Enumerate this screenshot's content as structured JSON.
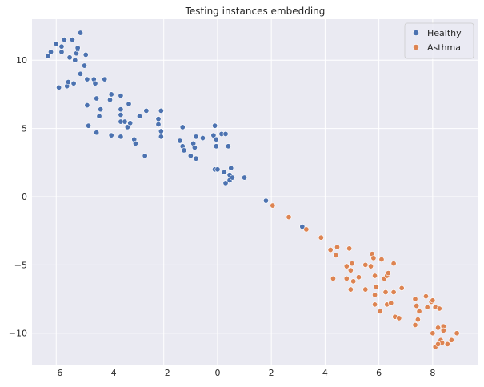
{
  "chart_data": {
    "type": "scatter",
    "title": "Testing instances embedding",
    "xlabel": "",
    "ylabel": "",
    "xlim": [
      -6.9,
      9.7
    ],
    "ylim": [
      -12.3,
      13.0
    ],
    "xticks": [
      -6,
      -4,
      -2,
      0,
      2,
      4,
      6,
      8
    ],
    "yticks": [
      -10,
      -5,
      0,
      5,
      10
    ],
    "xtick_labels": [
      "−6",
      "−4",
      "−2",
      "0",
      "2",
      "4",
      "6",
      "8"
    ],
    "ytick_labels": [
      "−10",
      "−5",
      "0",
      "5",
      "10"
    ],
    "grid": true,
    "background": "#eaeaf2",
    "legend_position": "top-right",
    "series": [
      {
        "name": "Healthy",
        "color": "#4c72b0",
        "points": [
          [
            -6.3,
            10.3
          ],
          [
            -6.2,
            10.6
          ],
          [
            -6.0,
            11.2
          ],
          [
            -5.8,
            10.6
          ],
          [
            -5.8,
            11.0
          ],
          [
            -5.7,
            11.5
          ],
          [
            -5.5,
            10.2
          ],
          [
            -5.4,
            11.5
          ],
          [
            -5.3,
            10.0
          ],
          [
            -5.25,
            10.5
          ],
          [
            -5.2,
            10.8
          ],
          [
            -5.2,
            10.9
          ],
          [
            -5.1,
            12.0
          ],
          [
            -5.1,
            9.0
          ],
          [
            -4.9,
            10.4
          ],
          [
            -4.95,
            9.6
          ],
          [
            -4.85,
            8.6
          ],
          [
            -5.9,
            8.0
          ],
          [
            -5.6,
            8.1
          ],
          [
            -5.55,
            8.4
          ],
          [
            -5.35,
            8.3
          ],
          [
            -4.6,
            8.6
          ],
          [
            -4.55,
            8.3
          ],
          [
            -4.2,
            8.6
          ],
          [
            -4.5,
            7.2
          ],
          [
            -3.95,
            7.5
          ],
          [
            -4.0,
            7.1
          ],
          [
            -3.6,
            7.4
          ],
          [
            -4.35,
            6.4
          ],
          [
            -4.4,
            5.9
          ],
          [
            -4.85,
            6.7
          ],
          [
            -4.8,
            5.2
          ],
          [
            -4.5,
            4.7
          ],
          [
            -3.95,
            4.5
          ],
          [
            -3.6,
            4.4
          ],
          [
            -3.6,
            6.4
          ],
          [
            -3.6,
            6.0
          ],
          [
            -3.6,
            5.5
          ],
          [
            -3.45,
            5.5
          ],
          [
            -3.35,
            5.1
          ],
          [
            -3.3,
            6.8
          ],
          [
            -3.25,
            5.4
          ],
          [
            -3.1,
            4.2
          ],
          [
            -3.05,
            3.9
          ],
          [
            -2.9,
            5.9
          ],
          [
            -2.65,
            6.3
          ],
          [
            -2.7,
            3.0
          ],
          [
            -2.2,
            5.7
          ],
          [
            -2.2,
            5.3
          ],
          [
            -2.1,
            6.3
          ],
          [
            -2.1,
            4.8
          ],
          [
            -2.1,
            4.4
          ],
          [
            -1.4,
            4.1
          ],
          [
            -1.3,
            5.1
          ],
          [
            -1.3,
            3.7
          ],
          [
            -1.25,
            3.4
          ],
          [
            -1.0,
            3.0
          ],
          [
            -0.9,
            3.9
          ],
          [
            -0.85,
            3.6
          ],
          [
            -0.8,
            4.4
          ],
          [
            -0.8,
            2.8
          ],
          [
            -0.55,
            4.3
          ],
          [
            -0.15,
            4.5
          ],
          [
            -0.1,
            5.2
          ],
          [
            -0.05,
            4.2
          ],
          [
            -0.05,
            3.7
          ],
          [
            -0.1,
            2.0
          ],
          [
            0.0,
            2.0
          ],
          [
            0.15,
            4.6
          ],
          [
            0.3,
            4.6
          ],
          [
            0.25,
            1.8
          ],
          [
            0.3,
            1.0
          ],
          [
            0.4,
            3.7
          ],
          [
            0.45,
            1.6
          ],
          [
            0.45,
            1.2
          ],
          [
            0.5,
            2.1
          ],
          [
            0.55,
            1.4
          ],
          [
            1.0,
            1.4
          ],
          [
            1.8,
            -0.3
          ],
          [
            3.15,
            -2.2
          ]
        ]
      },
      {
        "name": "Asthma",
        "color": "#dd8452",
        "points": [
          [
            2.05,
            -0.65
          ],
          [
            2.65,
            -1.5
          ],
          [
            3.3,
            -2.4
          ],
          [
            3.85,
            -3.0
          ],
          [
            4.2,
            -3.9
          ],
          [
            4.45,
            -3.7
          ],
          [
            4.9,
            -3.8
          ],
          [
            4.4,
            -4.3
          ],
          [
            4.3,
            -6.0
          ],
          [
            4.8,
            -5.1
          ],
          [
            4.95,
            -5.4
          ],
          [
            5.0,
            -4.9
          ],
          [
            4.8,
            -6.0
          ],
          [
            4.95,
            -6.8
          ],
          [
            5.05,
            -6.2
          ],
          [
            5.25,
            -5.9
          ],
          [
            5.5,
            -5.0
          ],
          [
            5.5,
            -6.8
          ],
          [
            5.75,
            -4.2
          ],
          [
            5.8,
            -4.5
          ],
          [
            5.7,
            -5.1
          ],
          [
            5.85,
            -5.8
          ],
          [
            5.9,
            -6.6
          ],
          [
            5.85,
            -7.2
          ],
          [
            5.85,
            -7.9
          ],
          [
            6.05,
            -8.4
          ],
          [
            6.1,
            -4.6
          ],
          [
            6.2,
            -6.0
          ],
          [
            6.3,
            -5.8
          ],
          [
            6.35,
            -5.6
          ],
          [
            6.25,
            -7.0
          ],
          [
            6.3,
            -7.9
          ],
          [
            6.55,
            -4.9
          ],
          [
            6.55,
            -7.0
          ],
          [
            6.45,
            -7.8
          ],
          [
            6.6,
            -8.8
          ],
          [
            6.85,
            -6.7
          ],
          [
            6.75,
            -8.9
          ],
          [
            7.35,
            -7.5
          ],
          [
            7.4,
            -8.0
          ],
          [
            7.45,
            -9.0
          ],
          [
            7.35,
            -9.4
          ],
          [
            7.5,
            -8.4
          ],
          [
            7.75,
            -7.3
          ],
          [
            7.8,
            -8.1
          ],
          [
            7.95,
            -7.7
          ],
          [
            8.0,
            -7.6
          ],
          [
            8.1,
            -8.1
          ],
          [
            8.25,
            -8.2
          ],
          [
            8.2,
            -9.6
          ],
          [
            8.3,
            -10.5
          ],
          [
            8.35,
            -10.7
          ],
          [
            8.4,
            -9.5
          ],
          [
            8.4,
            -9.8
          ],
          [
            8.55,
            -10.8
          ],
          [
            8.7,
            -10.5
          ],
          [
            8.9,
            -10.0
          ],
          [
            8.0,
            -10.0
          ],
          [
            8.1,
            -11.0
          ],
          [
            8.2,
            -10.8
          ]
        ]
      }
    ]
  }
}
